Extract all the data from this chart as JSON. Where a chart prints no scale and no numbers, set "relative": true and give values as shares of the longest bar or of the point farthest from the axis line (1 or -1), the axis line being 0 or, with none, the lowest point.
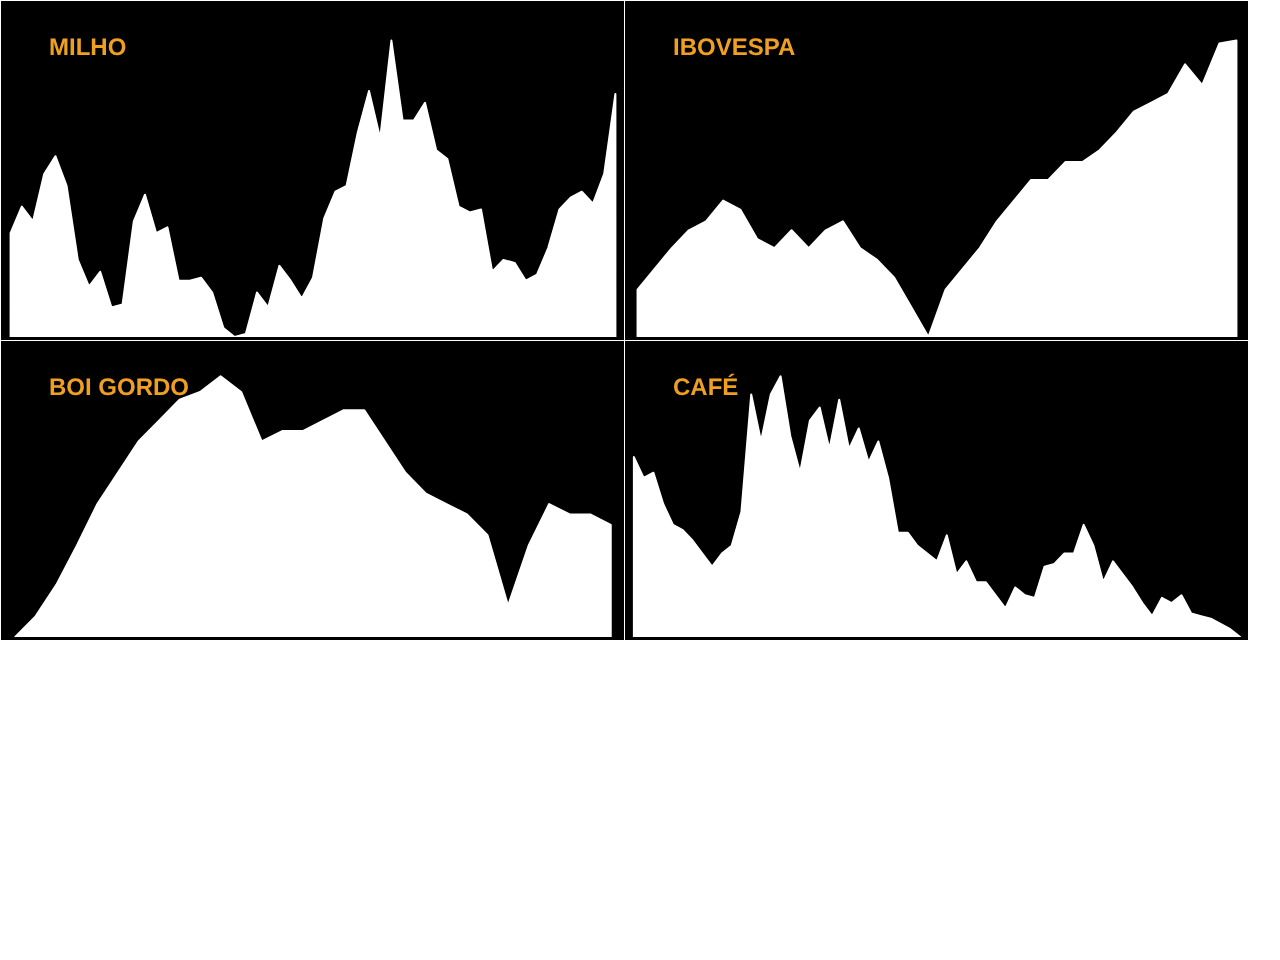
{
  "chart_data": [
    {
      "type": "area",
      "title": "MILHO",
      "relative": true,
      "categories": [
        null,
        null,
        null,
        null,
        null,
        null,
        null,
        null,
        null,
        null,
        null,
        null,
        null,
        null,
        null,
        null,
        null,
        null,
        null,
        null,
        null,
        null,
        null,
        null,
        null,
        null,
        null,
        null,
        null,
        null,
        null,
        null,
        null,
        null,
        null,
        null,
        null,
        null,
        null,
        null,
        null,
        null,
        null,
        null,
        null,
        null,
        null,
        null,
        null,
        null,
        null,
        null,
        null,
        null,
        null
      ],
      "series": [
        {
          "color": "#ffffff",
          "values": [
            0.35,
            0.44,
            0.39,
            0.55,
            0.61,
            0.51,
            0.26,
            0.17,
            0.22,
            0.1,
            0.11,
            0.39,
            0.48,
            0.35,
            0.37,
            0.19,
            0.19,
            0.2,
            0.15,
            0.03,
            0,
            0.01,
            0.15,
            0.1,
            0.24,
            0.19,
            0.13,
            0.2,
            0.4,
            0.49,
            0.51,
            0.69,
            0.83,
            0.67,
            1,
            0.73,
            0.73,
            0.79,
            0.63,
            0.6,
            0.44,
            0.42,
            0.43,
            0.22,
            0.26,
            0.25,
            0.19,
            0.21,
            0.3,
            0.43,
            0.47,
            0.49,
            0.45,
            0.55,
            0.82
          ]
        }
      ]
    },
    {
      "type": "area",
      "title": "IBOVESPA",
      "relative": true,
      "categories": [
        null,
        null,
        null,
        null,
        null,
        null,
        null,
        null,
        null,
        null,
        null,
        null,
        null,
        null,
        null,
        null,
        null,
        null,
        null,
        null,
        null,
        null,
        null,
        null,
        null,
        null,
        null,
        null,
        null,
        null,
        null,
        null,
        null,
        null,
        null,
        null
      ],
      "series": [
        {
          "color": "#ffffff",
          "values": [
            0.16,
            0.23,
            0.3,
            0.36,
            0.39,
            0.46,
            0.43,
            0.33,
            0.3,
            0.36,
            0.3,
            0.36,
            0.39,
            0.3,
            0.26,
            0.2,
            0.1,
            0,
            0.16,
            0.23,
            0.3,
            0.39,
            0.46,
            0.53,
            0.53,
            0.59,
            0.59,
            0.63,
            0.69,
            0.76,
            0.79,
            0.82,
            0.92,
            0.85,
            0.99,
            1
          ]
        }
      ]
    },
    {
      "type": "area",
      "title": "BOI GORDO",
      "relative": true,
      "categories": [
        null,
        null,
        null,
        null,
        null,
        null,
        null,
        null,
        null,
        null,
        null,
        null,
        null,
        null,
        null,
        null,
        null,
        null,
        null,
        null,
        null,
        null,
        null,
        null,
        null,
        null,
        null,
        null,
        null,
        null
      ],
      "series": [
        {
          "color": "#ffffff",
          "values": [
            0,
            0.08,
            0.2,
            0.35,
            0.51,
            0.63,
            0.75,
            0.83,
            0.91,
            0.94,
            1,
            0.94,
            0.75,
            0.79,
            0.79,
            0.83,
            0.87,
            0.87,
            0.75,
            0.63,
            0.55,
            0.51,
            0.47,
            0.39,
            0.12,
            0.35,
            0.51,
            0.47,
            0.47,
            0.43
          ]
        }
      ]
    },
    {
      "type": "area",
      "title": "CAFÉ",
      "relative": true,
      "categories": [
        null,
        null,
        null,
        null,
        null,
        null,
        null,
        null,
        null,
        null,
        null,
        null,
        null,
        null,
        null,
        null,
        null,
        null,
        null,
        null,
        null,
        null,
        null,
        null,
        null,
        null,
        null,
        null,
        null,
        null,
        null,
        null,
        null,
        null,
        null,
        null,
        null,
        null,
        null,
        null,
        null,
        null,
        null,
        null,
        null,
        null,
        null,
        null,
        null,
        null,
        null,
        null,
        null,
        null,
        null,
        null,
        null,
        null,
        null,
        null,
        null,
        null,
        null
      ],
      "series": [
        {
          "color": "#ffffff",
          "values": [
            0.69,
            0.61,
            0.63,
            0.51,
            0.43,
            0.41,
            0.37,
            0.32,
            0.27,
            0.32,
            0.35,
            0.48,
            0.93,
            0.75,
            0.93,
            1,
            0.77,
            0.63,
            0.83,
            0.88,
            0.72,
            0.91,
            0.72,
            0.8,
            0.67,
            0.75,
            0.61,
            0.4,
            0.4,
            0.35,
            0.32,
            0.29,
            0.39,
            0.24,
            0.29,
            0.21,
            0.21,
            0.16,
            0.11,
            0.19,
            0.16,
            0.15,
            0.27,
            0.28,
            0.32,
            0.32,
            0.43,
            0.35,
            0.21,
            0.29,
            0.24,
            0.19,
            0.13,
            0.08,
            0.15,
            0.13,
            0.16,
            0.09,
            0.08,
            0.07,
            0.05,
            0.03,
            0
          ]
        }
      ]
    }
  ]
}
